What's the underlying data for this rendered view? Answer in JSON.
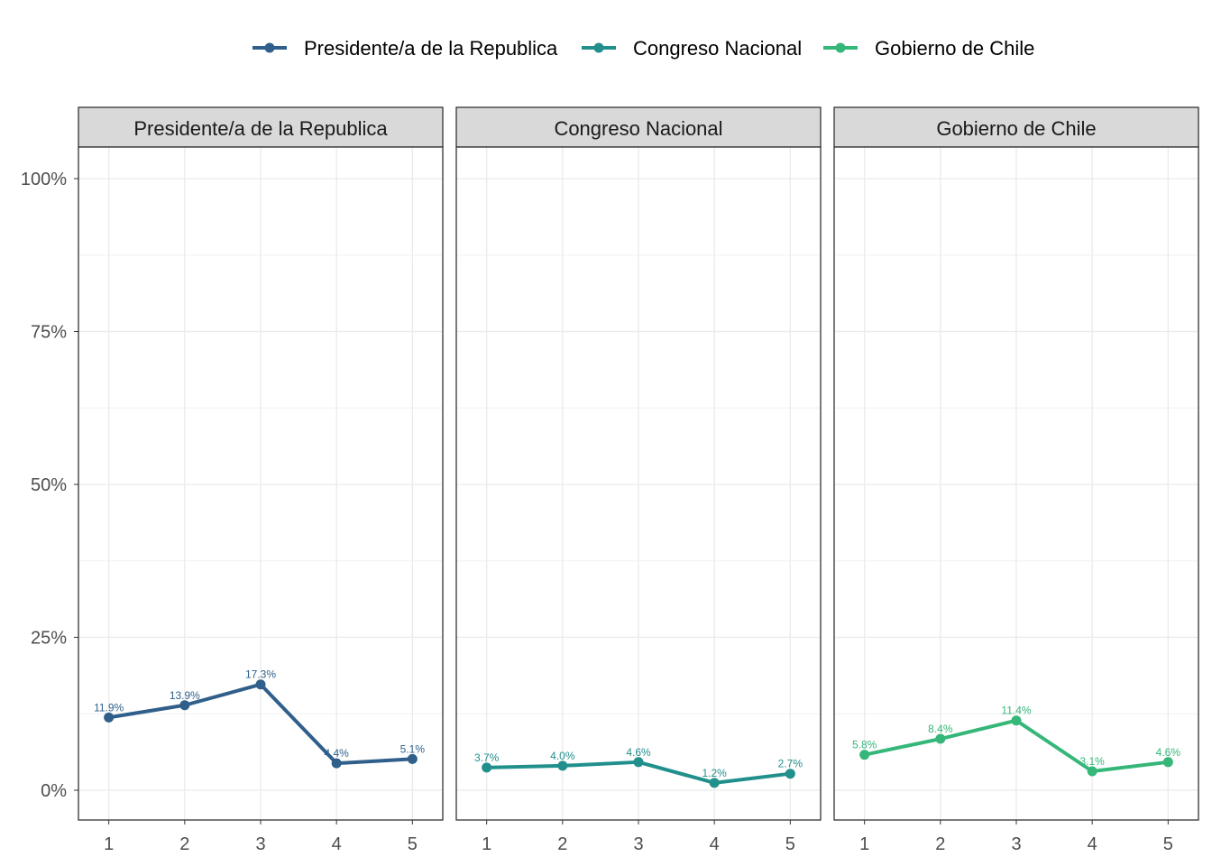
{
  "chart_data": {
    "type": "line",
    "facets": [
      "Presidente/a de la Republica",
      "Congreso Nacional",
      "Gobierno de Chile"
    ],
    "x": [
      1,
      2,
      3,
      4,
      5
    ],
    "x_tick_labels": [
      "1",
      "2",
      "3",
      "4",
      "5"
    ],
    "ylim": [
      0,
      1
    ],
    "y_ticks": [
      0,
      0.25,
      0.5,
      0.75,
      1.0
    ],
    "y_tick_labels": [
      "0%",
      "25%",
      "50%",
      "75%",
      "100%"
    ],
    "legend_position": "top",
    "grid": true,
    "series": [
      {
        "name": "Presidente/a de la Republica",
        "color": "#2f5f8a",
        "values": [
          0.119,
          0.139,
          0.173,
          0.044,
          0.051
        ],
        "labels": [
          "11.9%",
          "13.9%",
          "17.3%",
          "4.4%",
          "5.1%"
        ]
      },
      {
        "name": "Congreso Nacional",
        "color": "#21908c",
        "values": [
          0.037,
          0.04,
          0.046,
          0.012,
          0.027
        ],
        "labels": [
          "3.7%",
          "4.0%",
          "4.6%",
          "1.2%",
          "2.7%"
        ]
      },
      {
        "name": "Gobierno de Chile",
        "color": "#35b779",
        "values": [
          0.058,
          0.084,
          0.114,
          0.031,
          0.046
        ],
        "labels": [
          "5.8%",
          "8.4%",
          "11.4%",
          "3.1%",
          "4.6%"
        ]
      }
    ]
  }
}
